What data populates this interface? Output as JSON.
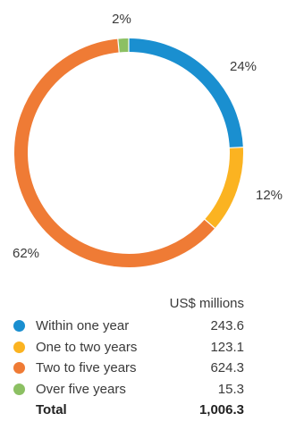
{
  "chart_data": {
    "type": "pie",
    "categories": [
      "Within one year",
      "One to two years",
      "Two to five years",
      "Over five years"
    ],
    "values": [
      243.6,
      123.1,
      624.3,
      15.3
    ],
    "percent_labels": [
      "24%",
      "12%",
      "62%",
      "2%"
    ],
    "colors": [
      "#1a8fd0",
      "#fbb321",
      "#ef7b35",
      "#8cc063"
    ],
    "unit": "US$ millions",
    "total_label": "Total",
    "total_value": "1,006.3",
    "value_labels": [
      "243.6",
      "123.1",
      "624.3",
      "15.3"
    ],
    "style": "donut"
  }
}
